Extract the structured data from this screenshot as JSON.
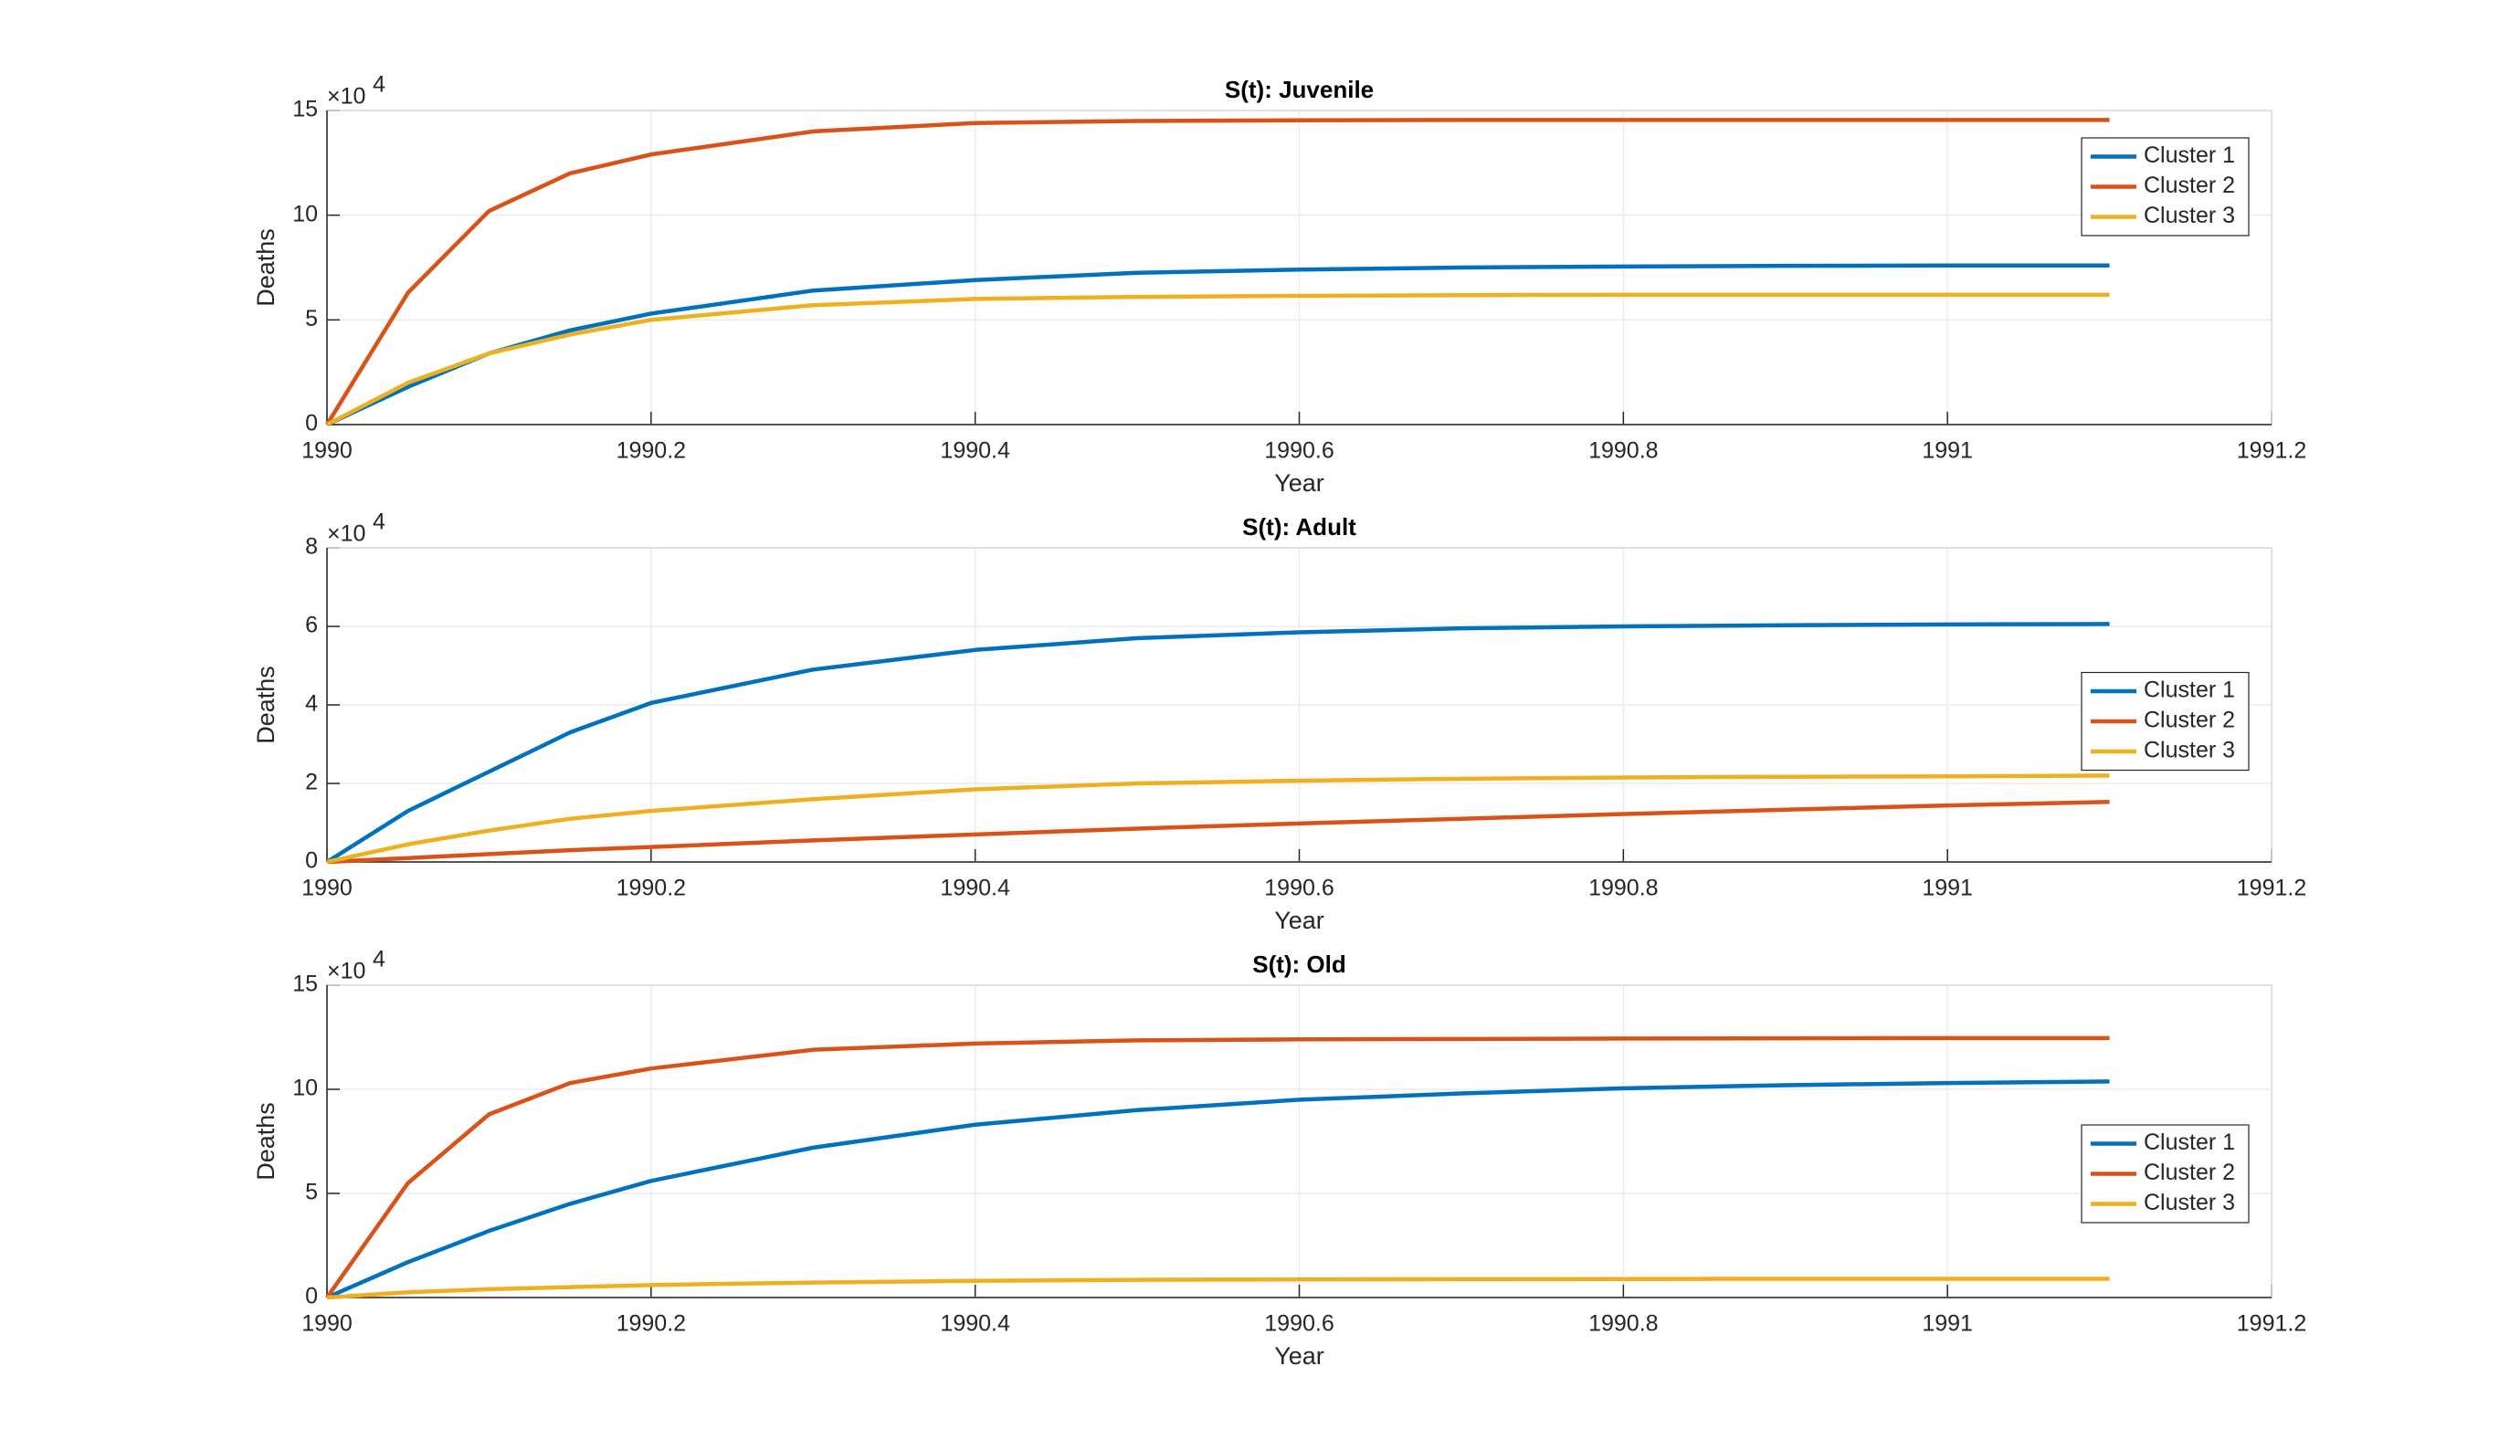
{
  "chart_data": [
    {
      "type": "line",
      "title": "S(t): Juvenile",
      "xlabel": "Year",
      "ylabel": "Deaths",
      "y_multiplier": {
        "base": "×10",
        "exponent": "4"
      },
      "x": [
        1990,
        1990.05,
        1990.1,
        1990.15,
        1990.2,
        1990.3,
        1990.4,
        1990.5,
        1990.6,
        1990.7,
        1990.8,
        1990.9,
        1991,
        1991.1
      ],
      "series": [
        {
          "name": "Cluster 1",
          "color": "#0072BD",
          "values": [
            0,
            1.8,
            3.4,
            4.5,
            5.3,
            6.4,
            6.9,
            7.25,
            7.4,
            7.5,
            7.55,
            7.58,
            7.6,
            7.6
          ]
        },
        {
          "name": "Cluster 2",
          "color": "#D95319",
          "values": [
            0,
            6.3,
            10.2,
            12.0,
            12.9,
            14.0,
            14.4,
            14.5,
            14.53,
            14.55,
            14.55,
            14.55,
            14.55,
            14.55
          ]
        },
        {
          "name": "Cluster 3",
          "color": "#EDB120",
          "values": [
            0,
            2.0,
            3.4,
            4.3,
            5.0,
            5.7,
            6.0,
            6.1,
            6.15,
            6.18,
            6.2,
            6.2,
            6.2,
            6.2
          ]
        }
      ],
      "xlim": [
        1990,
        1991.2
      ],
      "xticks": [
        1990,
        1990.2,
        1990.4,
        1990.6,
        1990.8,
        1991,
        1991.2
      ],
      "ylim": [
        0,
        15
      ],
      "yticks": [
        0,
        5,
        10,
        15
      ],
      "grid": true,
      "legend": "northeast"
    },
    {
      "type": "line",
      "title": "S(t): Adult",
      "xlabel": "Year",
      "ylabel": "Deaths",
      "y_multiplier": {
        "base": "×10",
        "exponent": "4"
      },
      "x": [
        1990,
        1990.05,
        1990.1,
        1990.15,
        1990.2,
        1990.3,
        1990.4,
        1990.5,
        1990.6,
        1990.7,
        1990.8,
        1990.9,
        1991,
        1991.1
      ],
      "series": [
        {
          "name": "Cluster 1",
          "color": "#0072BD",
          "values": [
            0,
            1.3,
            2.3,
            3.3,
            4.05,
            4.9,
            5.4,
            5.7,
            5.85,
            5.95,
            6.0,
            6.03,
            6.05,
            6.06
          ]
        },
        {
          "name": "Cluster 2",
          "color": "#D95319",
          "values": [
            0,
            0.1,
            0.2,
            0.3,
            0.38,
            0.55,
            0.7,
            0.85,
            0.98,
            1.1,
            1.22,
            1.33,
            1.44,
            1.53
          ]
        },
        {
          "name": "Cluster 3",
          "color": "#EDB120",
          "values": [
            0,
            0.45,
            0.8,
            1.1,
            1.3,
            1.6,
            1.85,
            2.0,
            2.07,
            2.12,
            2.15,
            2.17,
            2.18,
            2.2
          ]
        }
      ],
      "xlim": [
        1990,
        1991.2
      ],
      "xticks": [
        1990,
        1990.2,
        1990.4,
        1990.6,
        1990.8,
        1991,
        1991.2
      ],
      "ylim": [
        0,
        8
      ],
      "yticks": [
        0,
        2,
        4,
        6,
        8
      ],
      "grid": true,
      "legend": "east"
    },
    {
      "type": "line",
      "title": "S(t): Old",
      "xlabel": "Year",
      "ylabel": "Deaths",
      "y_multiplier": {
        "base": "×10",
        "exponent": "4"
      },
      "x": [
        1990,
        1990.05,
        1990.1,
        1990.15,
        1990.2,
        1990.3,
        1990.4,
        1990.5,
        1990.6,
        1990.7,
        1990.8,
        1990.9,
        1991,
        1991.1
      ],
      "series": [
        {
          "name": "Cluster 1",
          "color": "#0072BD",
          "values": [
            0,
            1.7,
            3.2,
            4.5,
            5.6,
            7.2,
            8.3,
            9.0,
            9.5,
            9.8,
            10.05,
            10.2,
            10.3,
            10.38
          ]
        },
        {
          "name": "Cluster 2",
          "color": "#D95319",
          "values": [
            0,
            5.5,
            8.8,
            10.3,
            11.0,
            11.9,
            12.2,
            12.35,
            12.4,
            12.42,
            12.44,
            12.45,
            12.46,
            12.46
          ]
        },
        {
          "name": "Cluster 3",
          "color": "#EDB120",
          "values": [
            0,
            0.25,
            0.4,
            0.5,
            0.6,
            0.72,
            0.8,
            0.85,
            0.87,
            0.88,
            0.89,
            0.9,
            0.9,
            0.9
          ]
        }
      ],
      "xlim": [
        1990,
        1991.2
      ],
      "xticks": [
        1990,
        1990.2,
        1990.4,
        1990.6,
        1990.8,
        1991,
        1991.2
      ],
      "ylim": [
        0,
        15
      ],
      "yticks": [
        0,
        5,
        10,
        15
      ],
      "grid": true,
      "legend": "southeast"
    }
  ]
}
